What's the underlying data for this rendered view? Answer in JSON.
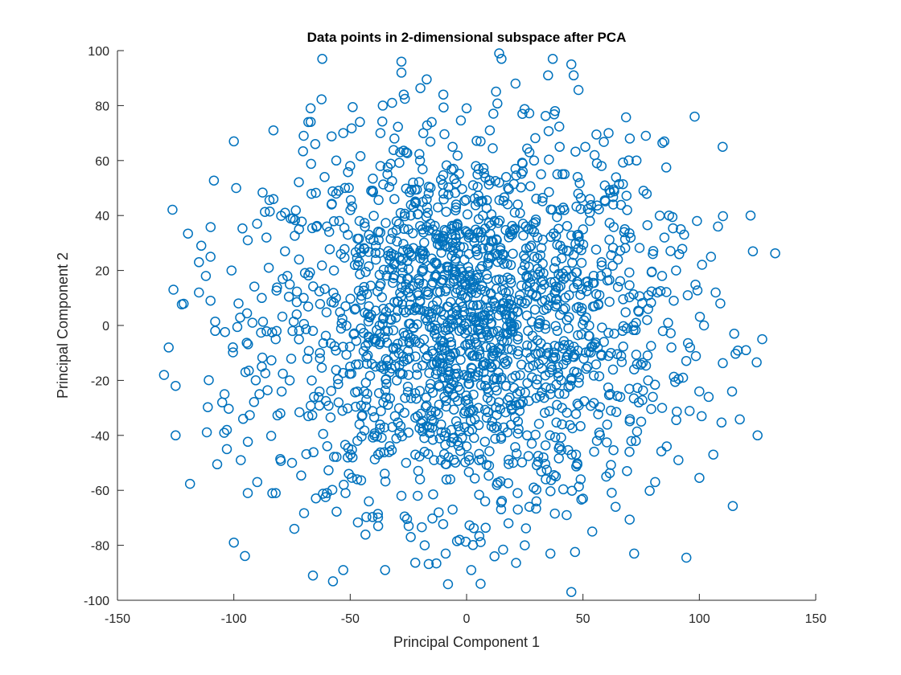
{
  "chart_data": {
    "type": "scatter",
    "title": "Data points in 2-dimensional subspace after PCA",
    "xlabel": "Principal Component 1",
    "ylabel": "Principal Component 2",
    "xlim": [
      -150,
      150
    ],
    "ylim": [
      -100,
      100
    ],
    "xticks": [
      -150,
      -100,
      -50,
      0,
      50,
      100,
      150
    ],
    "yticks": [
      -100,
      -80,
      -60,
      -40,
      -20,
      0,
      20,
      40,
      60,
      80,
      100
    ],
    "grid": false,
    "legend": "none",
    "marker": "circle-open",
    "color": "#0072BD",
    "series": [
      {
        "points": [
          [
            -130,
            -18
          ],
          [
            -128,
            -8
          ],
          [
            -125,
            -22
          ],
          [
            -125,
            -40
          ],
          [
            -115,
            12
          ],
          [
            -115,
            23
          ],
          [
            -114,
            29
          ],
          [
            -112,
            18
          ],
          [
            -110,
            25
          ],
          [
            -110,
            9
          ],
          [
            -108,
            -2
          ],
          [
            -105,
            -28
          ],
          [
            -104,
            -25
          ],
          [
            -103,
            -45
          ],
          [
            -103,
            -38
          ],
          [
            -101,
            20
          ],
          [
            -100,
            67
          ],
          [
            -100,
            -79
          ],
          [
            -99,
            50
          ],
          [
            -98,
            8
          ],
          [
            -97,
            -49
          ],
          [
            -96,
            -34
          ],
          [
            -95,
            -17
          ],
          [
            -94,
            31
          ],
          [
            -94,
            -61
          ],
          [
            -92,
            1
          ],
          [
            -90,
            37
          ],
          [
            -89,
            -25
          ],
          [
            -88,
            10
          ],
          [
            -86,
            32
          ],
          [
            -85,
            21
          ],
          [
            -83,
            71
          ],
          [
            -83,
            46
          ],
          [
            -82,
            -61
          ],
          [
            -80,
            -32
          ],
          [
            -78,
            41
          ],
          [
            -77,
            18
          ],
          [
            -75,
            -50
          ],
          [
            -74,
            -74
          ],
          [
            -73,
            4
          ],
          [
            -72,
            35
          ],
          [
            -70,
            69
          ],
          [
            -68,
            74
          ],
          [
            -67,
            79
          ],
          [
            -66,
            -91
          ],
          [
            -65,
            66
          ],
          [
            -63,
            -12
          ],
          [
            -62,
            97
          ],
          [
            -61,
            54
          ],
          [
            -60,
            -61
          ],
          [
            -58,
            44
          ],
          [
            -55,
            -28
          ],
          [
            -54,
            26
          ],
          [
            -53,
            70
          ],
          [
            -53,
            -89
          ],
          [
            -52,
            7
          ],
          [
            -50,
            58
          ],
          [
            -49,
            -48
          ],
          [
            -48,
            22
          ],
          [
            -46,
            38
          ],
          [
            -45,
            -33
          ],
          [
            -44,
            14
          ],
          [
            -42,
            -64
          ],
          [
            -41,
            49
          ],
          [
            -40,
            -5
          ],
          [
            -39,
            29
          ],
          [
            -38,
            -73
          ],
          [
            -37,
            70
          ],
          [
            -36,
            80
          ],
          [
            -35,
            -89
          ],
          [
            -34,
            55
          ],
          [
            -33,
            -17
          ],
          [
            -32,
            81
          ],
          [
            -31,
            68
          ],
          [
            -30,
            -20
          ],
          [
            -29,
            37
          ],
          [
            -28,
            96
          ],
          [
            -28,
            92
          ],
          [
            -27,
            84
          ],
          [
            -26,
            -50
          ],
          [
            -25,
            12
          ],
          [
            -24,
            -77
          ],
          [
            -23,
            52
          ],
          [
            -22,
            -6
          ],
          [
            -21,
            -62
          ],
          [
            -20,
            60
          ],
          [
            -19,
            27
          ],
          [
            -18,
            -80
          ],
          [
            -17,
            43
          ],
          [
            -16,
            -37
          ],
          [
            -15,
            74
          ],
          [
            -14,
            -14
          ],
          [
            -13,
            33
          ],
          [
            -12,
            -68
          ],
          [
            -11,
            5
          ],
          [
            -10,
            84
          ],
          [
            -10,
            48
          ],
          [
            -9,
            -83
          ],
          [
            -8,
            20
          ],
          [
            -7,
            -56
          ],
          [
            -6,
            65
          ],
          [
            -5,
            -26
          ],
          [
            -4,
            37
          ],
          [
            -3,
            -78
          ],
          [
            -2,
            11
          ],
          [
            0,
            79
          ],
          [
            0,
            -44
          ],
          [
            1,
            26
          ],
          [
            2,
            -89
          ],
          [
            3,
            3
          ],
          [
            4,
            58
          ],
          [
            5,
            -17
          ],
          [
            6,
            -94
          ],
          [
            7,
            40
          ],
          [
            8,
            -64
          ],
          [
            9,
            17
          ],
          [
            10,
            71
          ],
          [
            11,
            -35
          ],
          [
            12,
            -84
          ],
          [
            13,
            31
          ],
          [
            14,
            99
          ],
          [
            15,
            97
          ],
          [
            16,
            -6
          ],
          [
            17,
            54
          ],
          [
            18,
            -72
          ],
          [
            19,
            22
          ],
          [
            20,
            -50
          ],
          [
            21,
            88
          ],
          [
            22,
            44
          ],
          [
            23,
            -24
          ],
          [
            24,
            77
          ],
          [
            25,
            -80
          ],
          [
            26,
            9
          ],
          [
            27,
            63
          ],
          [
            28,
            -43
          ],
          [
            29,
            34
          ],
          [
            30,
            -64
          ],
          [
            31,
            -14
          ],
          [
            32,
            55
          ],
          [
            33,
            19
          ],
          [
            34,
            -56
          ],
          [
            35,
            91
          ],
          [
            36,
            -83
          ],
          [
            37,
            97
          ],
          [
            38,
            78
          ],
          [
            39,
            -2
          ],
          [
            40,
            65
          ],
          [
            41,
            -30
          ],
          [
            42,
            42
          ],
          [
            43,
            -69
          ],
          [
            44,
            11
          ],
          [
            45,
            95
          ],
          [
            46,
            91
          ],
          [
            45,
            -97
          ],
          [
            47,
            -47
          ],
          [
            48,
            28
          ],
          [
            50,
            -63
          ],
          [
            51,
            65
          ],
          [
            52,
            -15
          ],
          [
            53,
            38
          ],
          [
            54,
            -75
          ],
          [
            55,
            7
          ],
          [
            56,
            59
          ],
          [
            57,
            -39
          ],
          [
            58,
            23
          ],
          [
            60,
            -55
          ],
          [
            61,
            70
          ],
          [
            62,
            -10
          ],
          [
            63,
            44
          ],
          [
            64,
            -66
          ],
          [
            65,
            14
          ],
          [
            66,
            -26
          ],
          [
            68,
            35
          ],
          [
            70,
            -46
          ],
          [
            72,
            -83
          ],
          [
            73,
            60
          ],
          [
            74,
            5
          ],
          [
            75,
            -35
          ],
          [
            76,
            49
          ],
          [
            77,
            69
          ],
          [
            78,
            -20
          ],
          [
            80,
            26
          ],
          [
            81,
            -57
          ],
          [
            82,
            12
          ],
          [
            84,
            -30
          ],
          [
            85,
            32
          ],
          [
            86,
            -44
          ],
          [
            87,
            40
          ],
          [
            88,
            -8
          ],
          [
            90,
            20
          ],
          [
            91,
            -49
          ],
          [
            92,
            35
          ],
          [
            93,
            -19
          ],
          [
            95,
            11
          ],
          [
            96,
            -8
          ],
          [
            98,
            76
          ],
          [
            99,
            38
          ],
          [
            100,
            -24
          ],
          [
            101,
            -33
          ],
          [
            102,
            0
          ],
          [
            104,
            -26
          ],
          [
            105,
            25
          ],
          [
            106,
            -47
          ],
          [
            107,
            12
          ],
          [
            108,
            36
          ],
          [
            109,
            8
          ],
          [
            110,
            65
          ],
          [
            115,
            -3
          ],
          [
            122,
            40
          ],
          [
            123,
            27
          ],
          [
            125,
            -40
          ],
          [
            127,
            -5
          ],
          [
            -4,
            2
          ],
          [
            3,
            14
          ],
          [
            -12,
            -8
          ],
          [
            15,
            24
          ],
          [
            -20,
            9
          ],
          [
            22,
            -4
          ],
          [
            -6,
            30
          ],
          [
            8,
            -22
          ],
          [
            -28,
            17
          ],
          [
            30,
            11
          ],
          [
            -1,
            -32
          ],
          [
            12,
            38
          ],
          [
            -35,
            -2
          ],
          [
            37,
            -12
          ],
          [
            -18,
            26
          ],
          [
            19,
            -29
          ],
          [
            -42,
            7
          ],
          [
            44,
            3
          ],
          [
            -9,
            -39
          ],
          [
            5,
            45
          ],
          [
            -50,
            -15
          ],
          [
            52,
            16
          ],
          [
            -24,
            40
          ],
          [
            26,
            -40
          ],
          [
            -57,
            20
          ],
          [
            59,
            -6
          ],
          [
            -14,
            -49
          ],
          [
            14,
            52
          ],
          [
            -63,
            -10
          ],
          [
            65,
            24
          ],
          [
            -31,
            46
          ],
          [
            33,
            -48
          ],
          [
            -70,
            10
          ],
          [
            72,
            -16
          ],
          [
            -20,
            -56
          ],
          [
            21,
            57
          ],
          [
            -76,
            -20
          ],
          [
            78,
            6
          ],
          [
            -40,
            31
          ],
          [
            41,
            -36
          ],
          [
            -82,
            -5
          ],
          [
            84,
            18
          ],
          [
            -28,
            -62
          ],
          [
            29,
            60
          ],
          [
            -46,
            -36
          ],
          [
            48,
            33
          ],
          [
            -55,
            49
          ],
          [
            56,
            -42
          ],
          [
            -60,
            36
          ],
          [
            62,
            -31
          ],
          [
            -37,
            58
          ],
          [
            39,
            55
          ],
          [
            -68,
            -33
          ],
          [
            69,
            42
          ],
          [
            -47,
            -56
          ],
          [
            49,
            -56
          ],
          [
            -72,
            24
          ],
          [
            74,
            -28
          ],
          [
            -56,
            60
          ],
          [
            58,
            58
          ],
          [
            -2,
            17
          ],
          [
            11,
            -11
          ],
          [
            -16,
            5
          ],
          [
            24,
            20
          ],
          [
            -25,
            -18
          ],
          [
            17,
            4
          ],
          [
            -8,
            -24
          ],
          [
            7,
            28
          ],
          [
            -33,
            24
          ],
          [
            36,
            -25
          ],
          [
            -21,
            -33
          ],
          [
            28,
            35
          ],
          [
            -44,
            -24
          ],
          [
            45,
            -20
          ],
          [
            -11,
            53
          ],
          [
            13,
            -58
          ],
          [
            -51,
            33
          ],
          [
            53,
            46
          ],
          [
            -38,
            -47
          ],
          [
            40,
            -44
          ],
          [
            -66,
            -2
          ],
          [
            67,
            -2
          ],
          [
            -26,
            63
          ],
          [
            27,
            -66
          ],
          [
            -78,
            27
          ],
          [
            80,
            -26
          ],
          [
            -6,
            -67
          ],
          [
            6,
            67
          ],
          [
            -88,
            -15
          ],
          [
            89,
            9
          ],
          [
            -52,
            -61
          ],
          [
            55,
            62
          ]
        ]
      }
    ]
  }
}
